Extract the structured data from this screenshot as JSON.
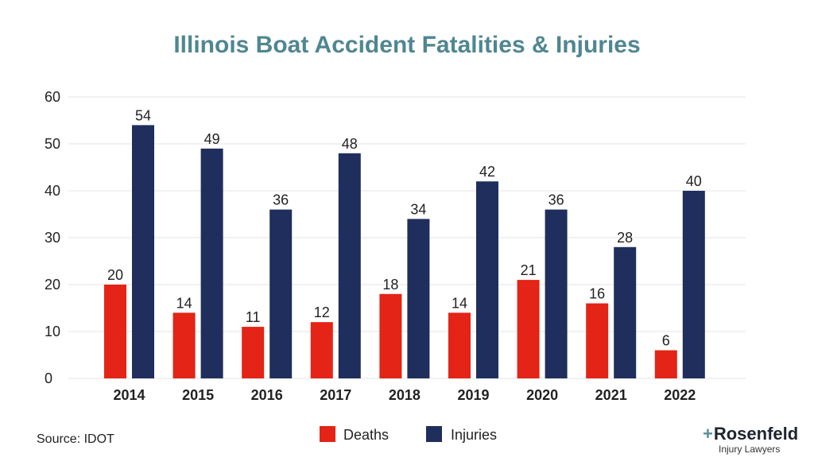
{
  "chart_data": {
    "type": "bar",
    "title": "Illinois Boat Accident Fatalities & Injuries",
    "categories": [
      "2014",
      "2015",
      "2016",
      "2017",
      "2018",
      "2019",
      "2020",
      "2021",
      "2022"
    ],
    "series": [
      {
        "name": "Deaths",
        "color": "#e32416",
        "values": [
          20,
          14,
          11,
          12,
          18,
          14,
          21,
          16,
          6
        ]
      },
      {
        "name": "Injuries",
        "color": "#1f2e5c",
        "values": [
          54,
          49,
          36,
          48,
          34,
          42,
          36,
          28,
          40
        ]
      }
    ],
    "ylim": [
      0,
      60
    ],
    "yticks": [
      0,
      10,
      20,
      30,
      40,
      50,
      60
    ],
    "xlabel": "",
    "ylabel": "",
    "grid": true,
    "legend": "bottom-center",
    "title_color": "#4f8691"
  },
  "source": "Source: IDOT",
  "logo": {
    "plus": "+",
    "brand": "Rosenfeld",
    "sub": "Injury Lawyers"
  }
}
